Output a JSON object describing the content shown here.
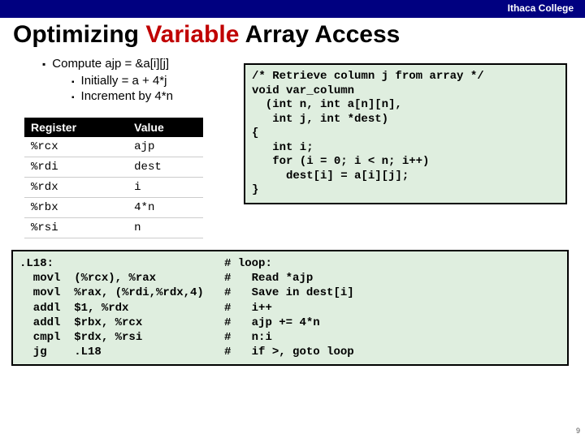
{
  "header": {
    "college": "Ithaca College"
  },
  "title": {
    "pre": "Optimizing ",
    "highlight": "Variable",
    "post": " Array Access"
  },
  "bullets": {
    "main": "Compute ajp = &a[i][j]",
    "sub1": "Initially = a + 4*j",
    "sub2": "Increment by 4*n"
  },
  "regtable": {
    "h1": "Register",
    "h2": "Value",
    "rows": [
      {
        "r": "%rcx",
        "v": "ajp"
      },
      {
        "r": "%rdi",
        "v": "dest"
      },
      {
        "r": "%rdx",
        "v": "i"
      },
      {
        "r": "%rbx",
        "v": "4*n"
      },
      {
        "r": "%rsi",
        "v": "n"
      }
    ]
  },
  "ccode": "/* Retrieve column j from array */\nvoid var_column\n  (int n, int a[n][n],\n   int j, int *dest)\n{\n   int i;\n   for (i = 0; i < n; i++)\n     dest[i] = a[i][j];\n}",
  "asm": ".L18:                         # loop:\n  movl  (%rcx), %rax          #   Read *ajp\n  movl  %rax, (%rdi,%rdx,4)   #   Save in dest[i]\n  addl  $1, %rdx              #   i++\n  addl  $rbx, %rcx            #   ajp += 4*n\n  cmpl  $rdx, %rsi            #   n:i\n  jg    .L18                  #   if >, goto loop",
  "pagenum": "9"
}
